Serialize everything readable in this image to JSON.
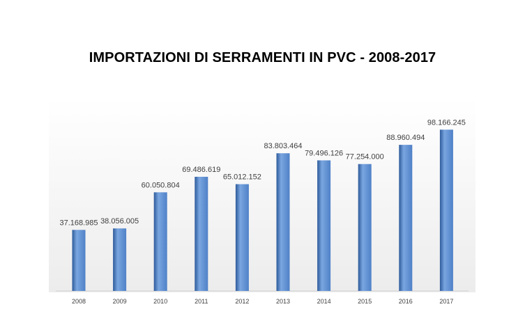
{
  "chart_data": {
    "type": "bar",
    "title": "IMPORTAZIONI DI SERRAMENTI IN PVC - 2008-2017",
    "xlabel": "",
    "ylabel": "",
    "categories": [
      "2008",
      "2009",
      "2010",
      "2011",
      "2012",
      "2013",
      "2014",
      "2015",
      "2016",
      "2017"
    ],
    "values": [
      37168985,
      38056005,
      60050804,
      69486619,
      65012152,
      83803464,
      79496126,
      77254000,
      88960494,
      98166245
    ],
    "value_labels": [
      "37.168.985",
      "38.056.005",
      "60.050.804",
      "69.486.619",
      "65.012.152",
      "83.803.464",
      "79.496.126",
      "77.254.000",
      "88.960.494",
      "98.166.245"
    ],
    "ylim": [
      0,
      100000000
    ],
    "grid": false,
    "legend": "none",
    "colors": {
      "bar_fill": "#4f81c7",
      "bar_highlight": "#7aa6e0",
      "bar_shadow": "#2d5a9a",
      "plot_background": "#f2f2f2",
      "baseline": "#d0d0d0"
    }
  }
}
